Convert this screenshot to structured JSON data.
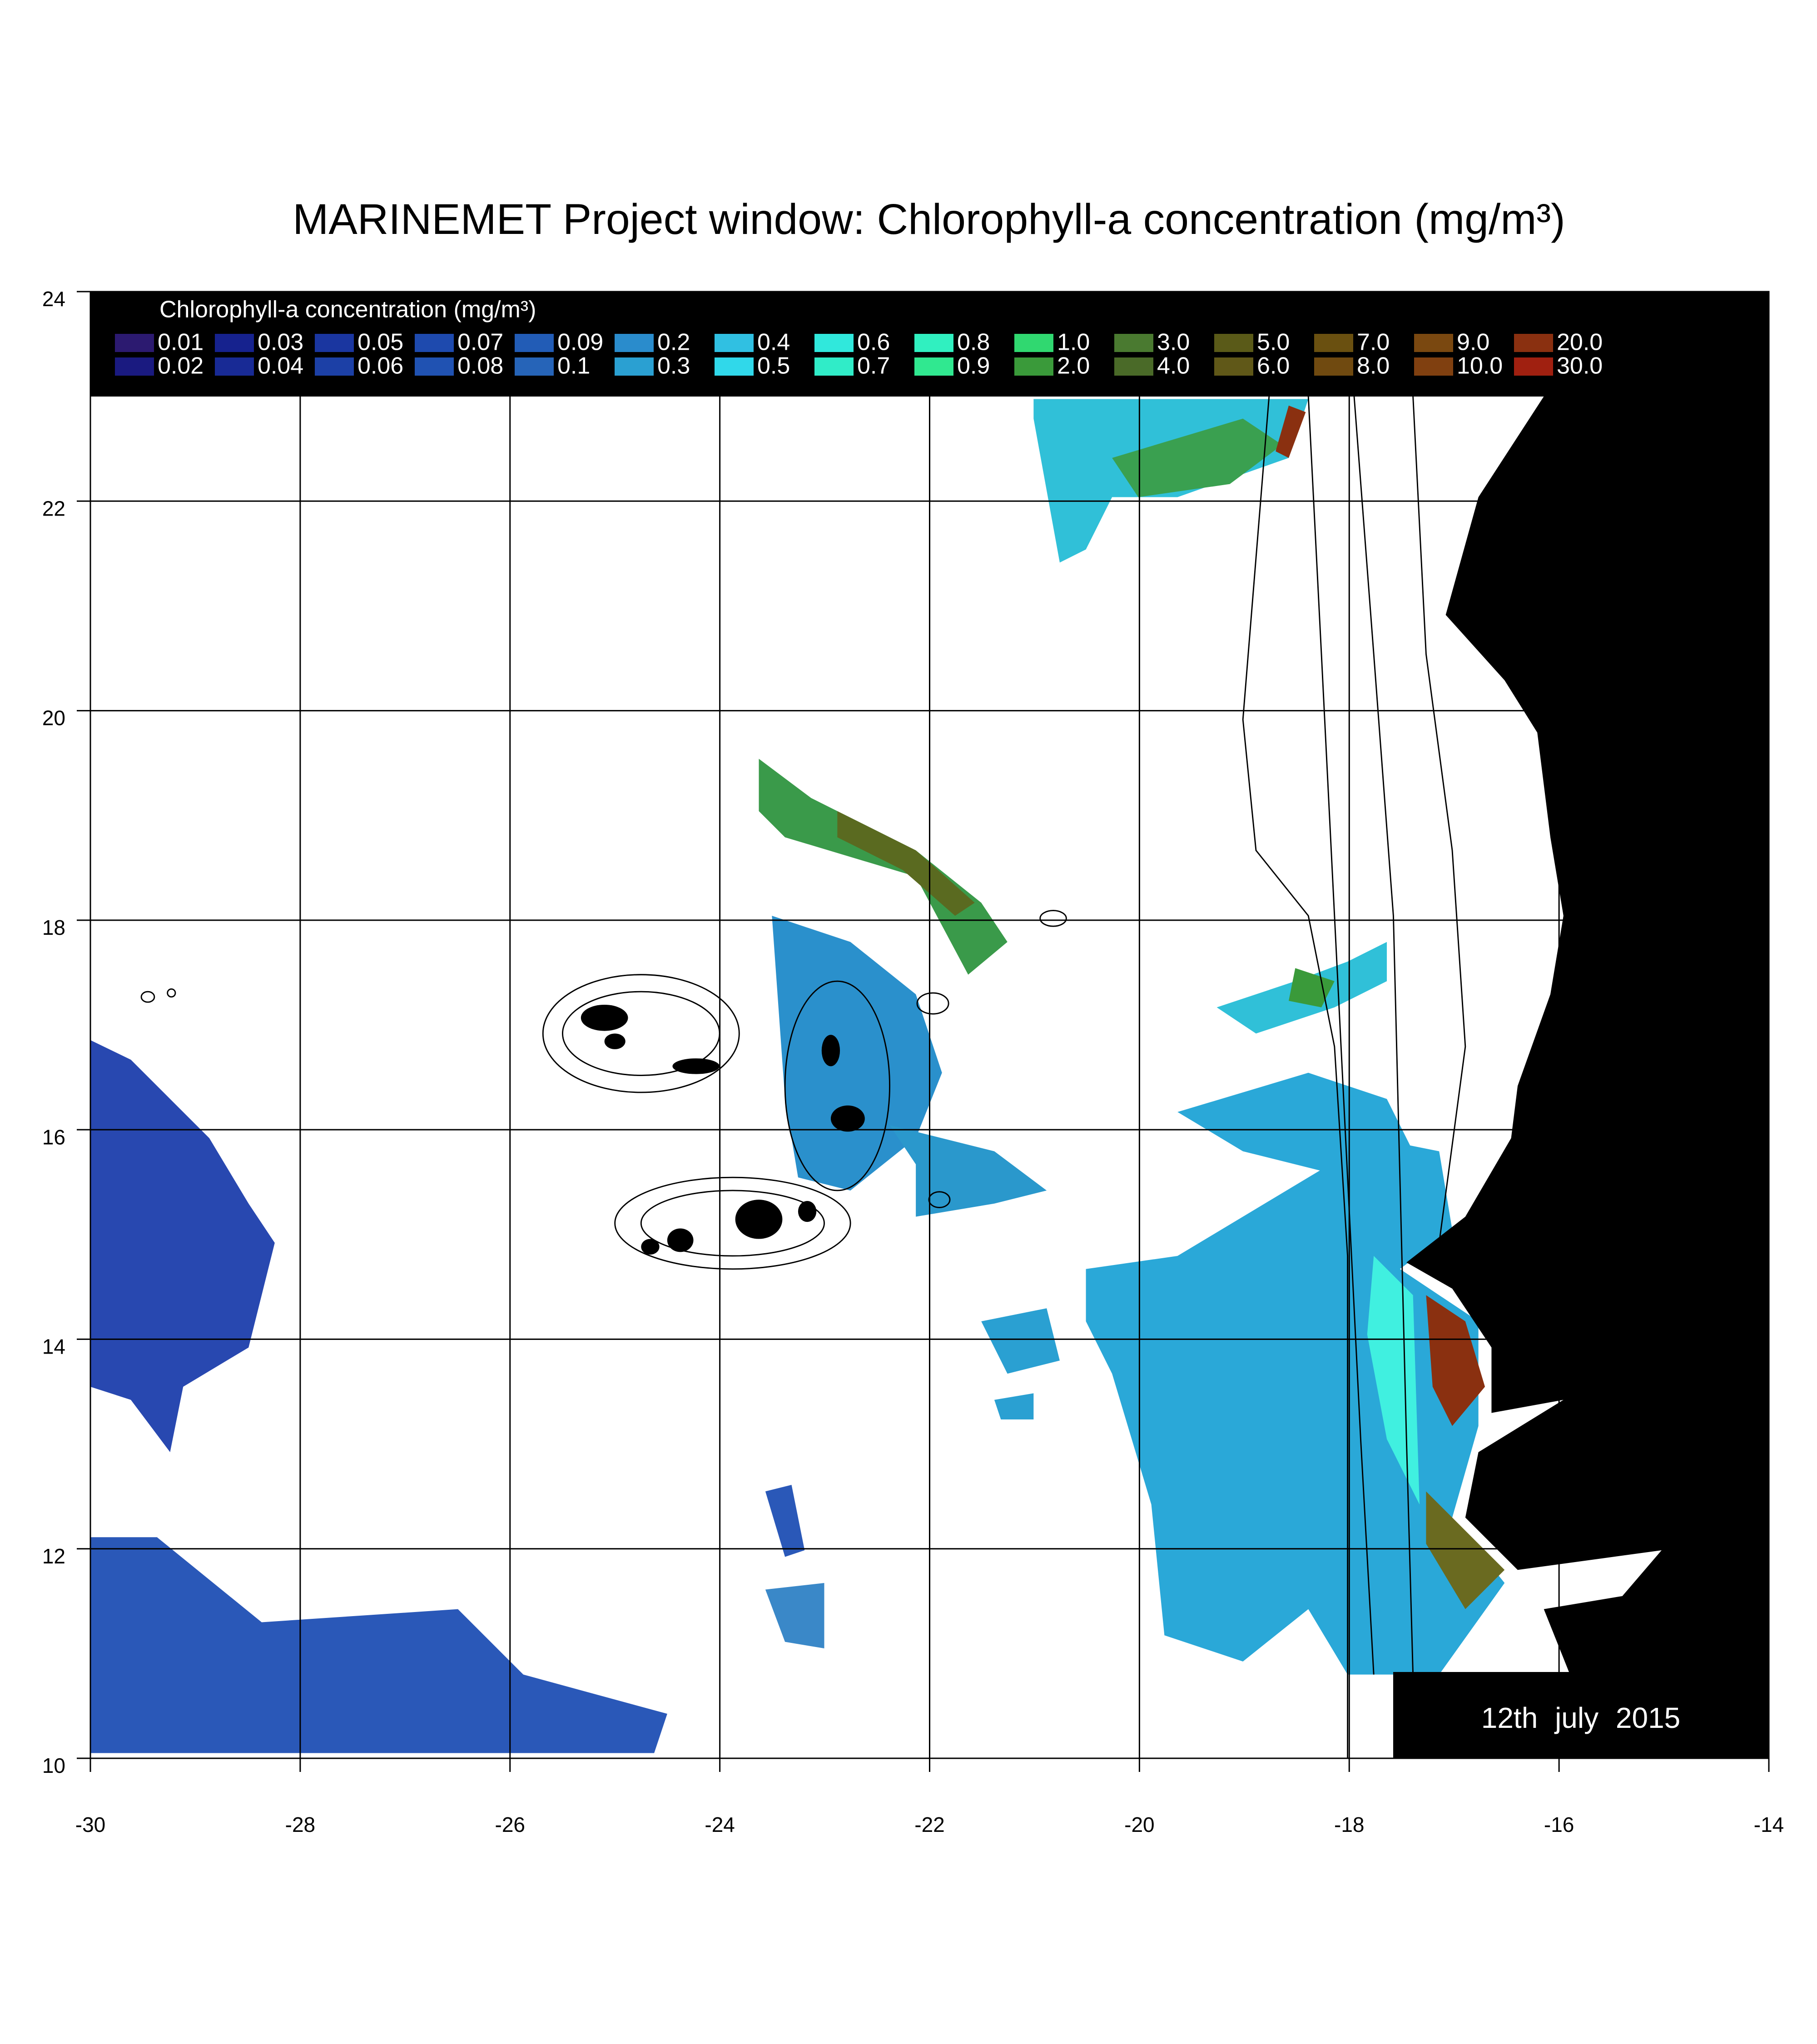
{
  "title": "MARINEMET Project window: Chlorophyll-a concentration (mg/m³)",
  "map": {
    "xlim": [
      -30,
      -14
    ],
    "ylim": [
      10,
      24
    ],
    "xticks": [
      -30,
      -28,
      -26,
      -24,
      -22,
      -20,
      -18,
      -16,
      -14
    ],
    "yticks": [
      10,
      12,
      14,
      16,
      18,
      20,
      22,
      24
    ],
    "grid": true
  },
  "legend": {
    "title": "Chlorophyll-a concentration (mg/m³)",
    "entries": [
      {
        "label": "0.01",
        "color": "#2c1a70"
      },
      {
        "label": "0.02",
        "color": "#1a1a80"
      },
      {
        "label": "0.03",
        "color": "#16228e"
      },
      {
        "label": "0.04",
        "color": "#182a95"
      },
      {
        "label": "0.05",
        "color": "#1a36a0"
      },
      {
        "label": "0.06",
        "color": "#1c40a6"
      },
      {
        "label": "0.07",
        "color": "#1e4aae"
      },
      {
        "label": "0.08",
        "color": "#2052b2"
      },
      {
        "label": "0.09",
        "color": "#225cb6"
      },
      {
        "label": "0.1",
        "color": "#2664b8"
      },
      {
        "label": "0.2",
        "color": "#2a8ccc"
      },
      {
        "label": "0.3",
        "color": "#2aa0d2"
      },
      {
        "label": "0.4",
        "color": "#30c0e2"
      },
      {
        "label": "0.5",
        "color": "#30d8ea"
      },
      {
        "label": "0.6",
        "color": "#30e8dc"
      },
      {
        "label": "0.7",
        "color": "#30ecc8"
      },
      {
        "label": "0.8",
        "color": "#30f0c0"
      },
      {
        "label": "0.9",
        "color": "#30e890"
      },
      {
        "label": "1.0",
        "color": "#30d870"
      },
      {
        "label": "2.0",
        "color": "#3a9a3a"
      },
      {
        "label": "3.0",
        "color": "#4a7a30"
      },
      {
        "label": "4.0",
        "color": "#4a6a28"
      },
      {
        "label": "5.0",
        "color": "#5a5a18"
      },
      {
        "label": "6.0",
        "color": "#605818"
      },
      {
        "label": "7.0",
        "color": "#6a5010"
      },
      {
        "label": "8.0",
        "color": "#704a10"
      },
      {
        "label": "9.0",
        "color": "#7a4810"
      },
      {
        "label": "10.0",
        "color": "#804010"
      },
      {
        "label": "20.0",
        "color": "#8a3010"
      },
      {
        "label": "30.0",
        "color": "#a02010"
      }
    ]
  },
  "date": "12th july 2015"
}
